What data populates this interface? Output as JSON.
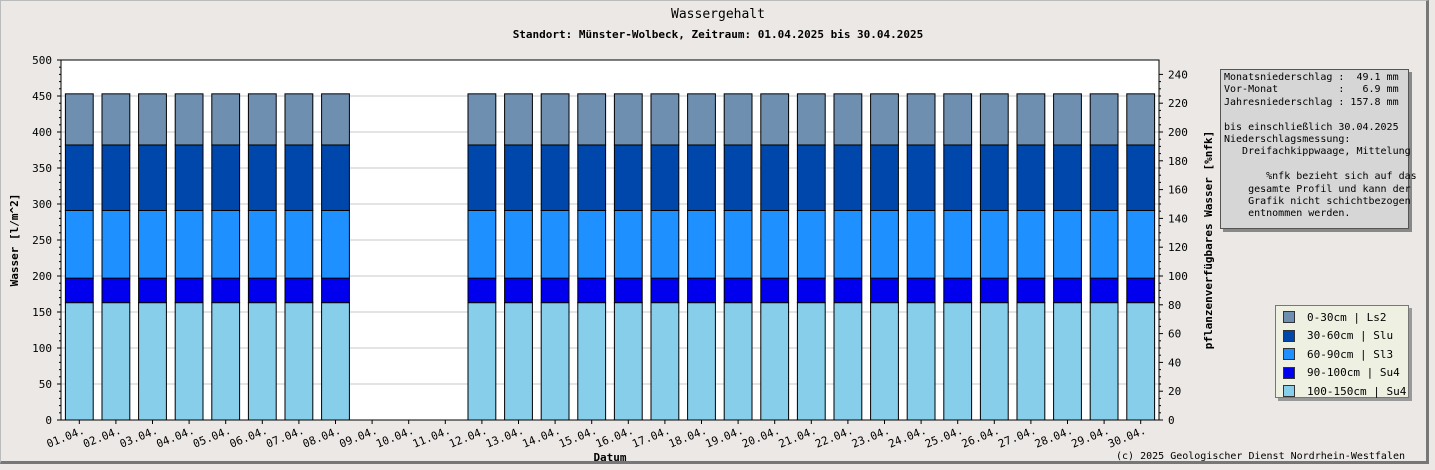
{
  "chart_data": {
    "type": "bar",
    "stacked": true,
    "title": "Wassergehalt",
    "subtitle": "Standort: Münster-Wolbeck, Zeitraum: 01.04.2025 bis 30.04.2025",
    "xlabel": "Datum",
    "ylabel": "Wasser [l/m^2]",
    "y2label": "pflanzenverfügbares Wasser [%nfk]",
    "ylim": [
      0,
      500
    ],
    "y2lim": [
      0,
      250
    ],
    "yticks": [
      0,
      50,
      100,
      150,
      200,
      250,
      300,
      350,
      400,
      450,
      500
    ],
    "y2ticks": [
      0,
      20,
      40,
      60,
      80,
      100,
      120,
      140,
      160,
      180,
      200,
      220,
      240
    ],
    "grid": true,
    "legend_position": "right",
    "categories": [
      "01.04.",
      "02.04.",
      "03.04.",
      "04.04.",
      "05.04.",
      "06.04.",
      "07.04.",
      "08.04.",
      "09.04.",
      "10.04.",
      "11.04.",
      "12.04.",
      "13.04.",
      "14.04.",
      "15.04.",
      "16.04.",
      "17.04.",
      "18.04.",
      "19.04.",
      "20.04.",
      "21.04.",
      "22.04.",
      "23.04.",
      "24.04.",
      "25.04.",
      "26.04.",
      "27.04.",
      "28.04.",
      "29.04.",
      "30.04."
    ],
    "series": [
      {
        "name": "100-150cm | Su4",
        "color": "#87ceeb",
        "values": [
          163,
          163,
          163,
          163,
          163,
          163,
          163,
          163,
          null,
          null,
          null,
          163,
          163,
          163,
          163,
          163,
          163,
          163,
          163,
          163,
          163,
          163,
          163,
          163,
          163,
          163,
          163,
          163,
          163,
          163
        ]
      },
      {
        "name": "90-100cm | Su4",
        "color": "#0000ee",
        "values": [
          34,
          34,
          34,
          34,
          34,
          34,
          34,
          34,
          null,
          null,
          null,
          34,
          34,
          34,
          34,
          34,
          34,
          34,
          34,
          34,
          34,
          34,
          34,
          34,
          34,
          34,
          34,
          34,
          34,
          34
        ]
      },
      {
        "name": "60-90cm | Sl3",
        "color": "#1e90ff",
        "values": [
          94,
          94,
          94,
          94,
          94,
          94,
          94,
          94,
          null,
          null,
          null,
          94,
          94,
          94,
          94,
          94,
          94,
          94,
          94,
          94,
          94,
          94,
          94,
          94,
          94,
          94,
          94,
          94,
          94,
          94
        ]
      },
      {
        "name": "30-60cm | Slu",
        "color": "#0047ab",
        "values": [
          91,
          91,
          91,
          91,
          91,
          91,
          91,
          91,
          null,
          null,
          null,
          91,
          91,
          91,
          91,
          91,
          91,
          91,
          91,
          91,
          91,
          91,
          91,
          91,
          91,
          91,
          91,
          91,
          91,
          91
        ]
      },
      {
        "name": "0-30cm | Ls2",
        "color": "#6f8fb0",
        "values": [
          71,
          71,
          71,
          71,
          71,
          71,
          71,
          71,
          null,
          null,
          null,
          71,
          71,
          71,
          71,
          71,
          71,
          71,
          71,
          71,
          71,
          71,
          71,
          71,
          71,
          71,
          71,
          71,
          71,
          71
        ]
      }
    ],
    "legend_order": [
      "0-30cm | Ls2",
      "30-60cm | Slu",
      "60-90cm | Sl3",
      "90-100cm | Su4",
      "100-150cm | Su4"
    ]
  },
  "info": {
    "lines": [
      "Monatsniederschlag :  49.1 mm",
      "Vor-Monat          :   6.9 mm",
      "Jahresniederschlag : 157.8 mm",
      "",
      "bis einschließlich 30.04.2025",
      "Niederschlagsmessung:",
      "   Dreifachkippwaage, Mittelung",
      "",
      "       %nfk bezieht sich auf das",
      "    gesamte Profil und kann der",
      "    Grafik nicht schichtbezogen",
      "    entnommen werden."
    ]
  },
  "copyright": "(c) 2025 Geologischer Dienst Nordrhein-Westfalen"
}
